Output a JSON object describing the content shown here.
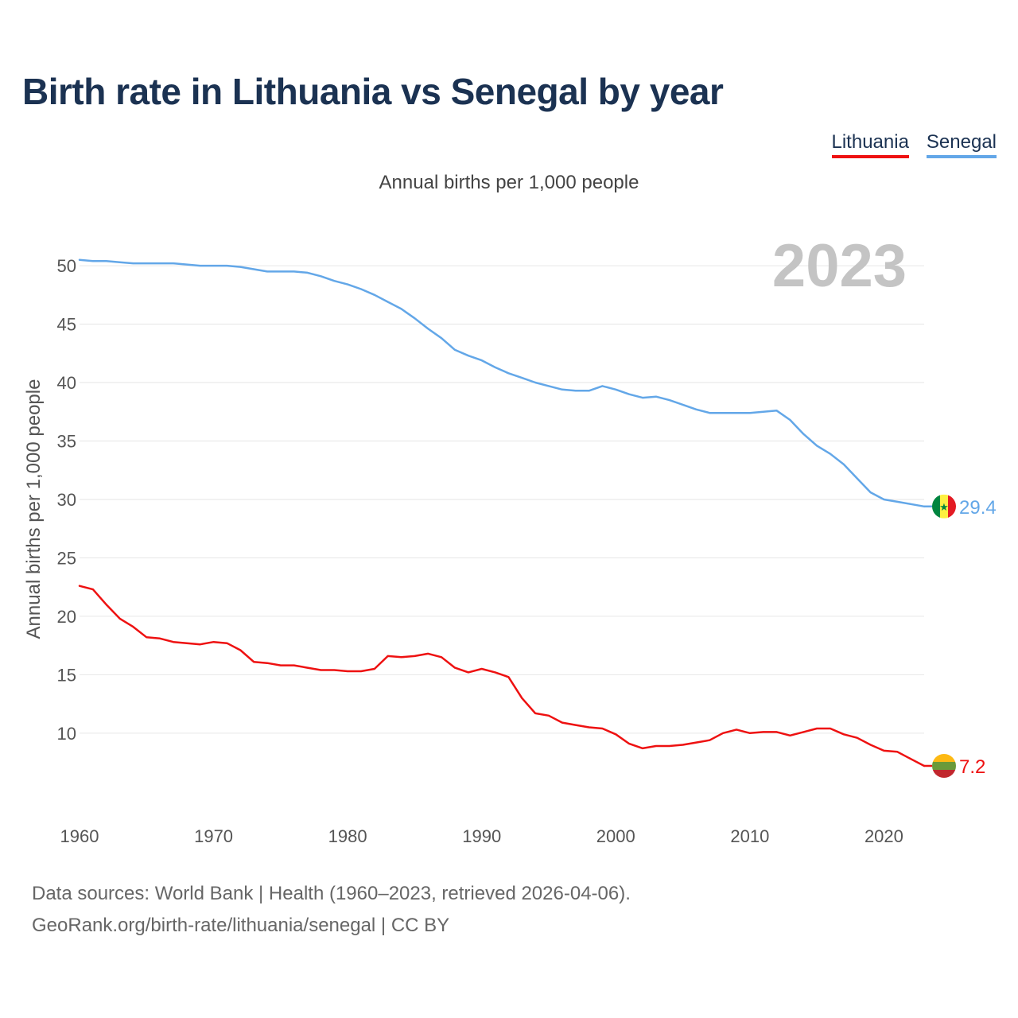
{
  "chart_data": {
    "type": "line",
    "title": "Birth rate in Lithuania vs Senegal by year",
    "subtitle": "Annual births per 1,000 people",
    "ylabel": "Annual births per 1,000 people",
    "xlabel": "",
    "year_label": "2023",
    "xlim": [
      1960,
      2023
    ],
    "ylim": [
      4,
      53
    ],
    "x_ticks": [
      "1960",
      "1970",
      "1980",
      "1990",
      "2000",
      "2010",
      "2020"
    ],
    "y_ticks": [
      "10",
      "15",
      "20",
      "25",
      "30",
      "35",
      "40",
      "45",
      "50"
    ],
    "grid": true,
    "legend_position": "top-right",
    "x": [
      1960,
      1961,
      1962,
      1963,
      1964,
      1965,
      1966,
      1967,
      1968,
      1969,
      1970,
      1971,
      1972,
      1973,
      1974,
      1975,
      1976,
      1977,
      1978,
      1979,
      1980,
      1981,
      1982,
      1983,
      1984,
      1985,
      1986,
      1987,
      1988,
      1989,
      1990,
      1991,
      1992,
      1993,
      1994,
      1995,
      1996,
      1997,
      1998,
      1999,
      2000,
      2001,
      2002,
      2003,
      2004,
      2005,
      2006,
      2007,
      2008,
      2009,
      2010,
      2011,
      2012,
      2013,
      2014,
      2015,
      2016,
      2017,
      2018,
      2019,
      2020,
      2021,
      2022,
      2023
    ],
    "series": [
      {
        "name": "Lithuania",
        "color": "#ee1111",
        "end_label": "7.2",
        "flag": "lithuania-flag",
        "values": [
          22.6,
          22.3,
          21.0,
          19.8,
          19.1,
          18.2,
          18.1,
          17.8,
          17.7,
          17.6,
          17.8,
          17.7,
          17.1,
          16.1,
          16.0,
          15.8,
          15.8,
          15.6,
          15.4,
          15.4,
          15.3,
          15.3,
          15.5,
          16.6,
          16.5,
          16.6,
          16.8,
          16.5,
          15.6,
          15.2,
          15.5,
          15.2,
          14.8,
          13.0,
          11.7,
          11.5,
          10.9,
          10.7,
          10.5,
          10.4,
          9.9,
          9.1,
          8.7,
          8.9,
          8.9,
          9.0,
          9.2,
          9.4,
          10.0,
          10.3,
          10.0,
          10.1,
          10.1,
          9.8,
          10.1,
          10.4,
          10.4,
          9.9,
          9.6,
          9.0,
          8.5,
          8.4,
          7.8,
          7.2
        ]
      },
      {
        "name": "Senegal",
        "color": "#63a7e8",
        "end_label": "29.4",
        "flag": "senegal-flag",
        "values": [
          50.5,
          50.4,
          50.4,
          50.3,
          50.2,
          50.2,
          50.2,
          50.2,
          50.1,
          50.0,
          50.0,
          50.0,
          49.9,
          49.7,
          49.5,
          49.5,
          49.5,
          49.4,
          49.1,
          48.7,
          48.4,
          48.0,
          47.5,
          46.9,
          46.3,
          45.5,
          44.6,
          43.8,
          42.8,
          42.3,
          41.9,
          41.3,
          40.8,
          40.4,
          40.0,
          39.7,
          39.4,
          39.3,
          39.3,
          39.7,
          39.4,
          39.0,
          38.7,
          38.8,
          38.5,
          38.1,
          37.7,
          37.4,
          37.4,
          37.4,
          37.4,
          37.5,
          37.6,
          36.8,
          35.6,
          34.6,
          33.9,
          33.0,
          31.8,
          30.6,
          30.0,
          29.8,
          29.6,
          29.4
        ]
      }
    ]
  },
  "footer": {
    "line1": "Data sources: World Bank | Health (1960–2023, retrieved 2026-04-06).",
    "line2": "GeoRank.org/birth-rate/lithuania/senegal | CC BY"
  }
}
